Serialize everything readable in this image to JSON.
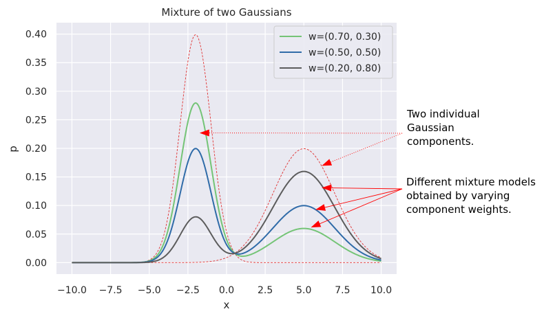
{
  "chart_data": {
    "type": "line",
    "title": "Mixture of two Gaussians",
    "xlabel": "x",
    "ylabel": "p",
    "xlim": [
      -11,
      11
    ],
    "ylim": [
      -0.02,
      0.42
    ],
    "xticks": [
      -10.0,
      -7.5,
      -5.0,
      -2.5,
      0.0,
      2.5,
      5.0,
      7.5,
      10.0
    ],
    "xtick_labels": [
      "−10.0",
      "−7.5",
      "−5.0",
      "−2.5",
      "0.0",
      "2.5",
      "5.0",
      "7.5",
      "10.0"
    ],
    "yticks": [
      0.0,
      0.05,
      0.1,
      0.15,
      0.2,
      0.25,
      0.3,
      0.35,
      0.4
    ],
    "ytick_labels": [
      "0.00",
      "0.05",
      "0.10",
      "0.15",
      "0.20",
      "0.25",
      "0.30",
      "0.35",
      "0.40"
    ],
    "grid": true,
    "legend_position": "top-right",
    "background": "#e9e9f1",
    "components": [
      {
        "mean": -2,
        "std": 1,
        "peak": 0.399
      },
      {
        "mean": 5,
        "std": 2,
        "peak": 0.1995
      }
    ],
    "component_color": "#e03030",
    "series": [
      {
        "name": "w=(0.70, 0.30)",
        "color": "#74c476",
        "weights": [
          0.7,
          0.3
        ],
        "peak_values": [
          0.28,
          0.06
        ]
      },
      {
        "name": "w=(0.50, 0.50)",
        "color": "#2f6ba8",
        "weights": [
          0.5,
          0.5
        ],
        "peak_values": [
          0.2,
          0.1
        ]
      },
      {
        "name": "w=(0.20, 0.80)",
        "color": "#5c5c5c",
        "weights": [
          0.2,
          0.8
        ],
        "peak_values": [
          0.08,
          0.16
        ]
      }
    ],
    "annotations": [
      {
        "text": [
          "Two individual",
          "Gaussian",
          "components."
        ],
        "arrow_style": "dotted",
        "targets": [
          {
            "x": -1.7,
            "y": 0.227
          },
          {
            "x": 6.2,
            "y": 0.17
          }
        ]
      },
      {
        "text": [
          "Different mixture models",
          "obtained by varying",
          "component weights."
        ],
        "arrow_style": "solid",
        "targets": [
          {
            "x": 6.2,
            "y": 0.131
          },
          {
            "x": 5.8,
            "y": 0.093
          },
          {
            "x": 5.5,
            "y": 0.062
          }
        ]
      }
    ]
  }
}
